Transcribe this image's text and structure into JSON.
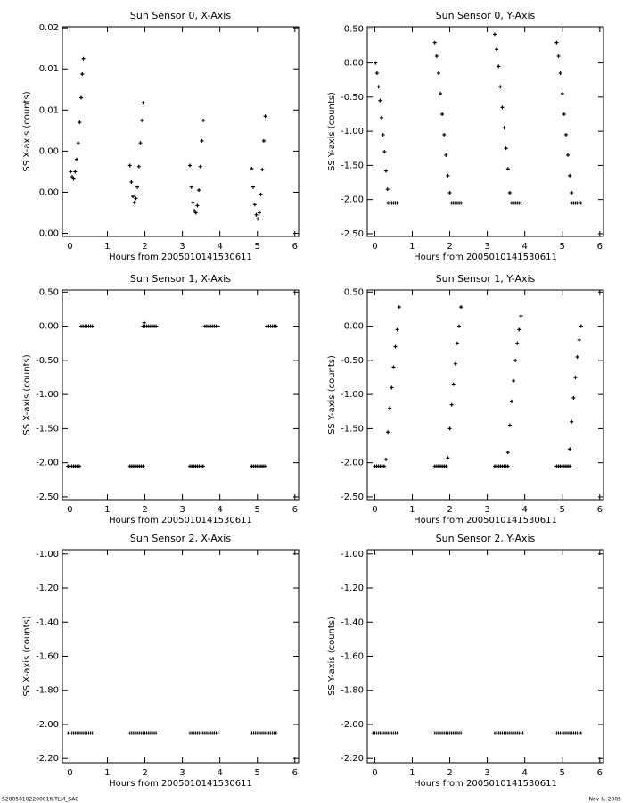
{
  "chart_data": [
    {
      "type": "scatter",
      "title": "Sun Sensor 0, X-Axis",
      "x_label": "Hours from 2005010141530611",
      "y_label": "SS X-axis (counts)",
      "color": "#000000",
      "x": [
        0.02,
        0.06,
        0.1,
        0.14,
        0.18,
        0.22,
        0.26,
        0.3,
        0.33,
        0.36,
        1.6,
        1.64,
        1.68,
        1.72,
        1.76,
        1.8,
        1.84,
        1.88,
        1.92,
        1.95,
        3.2,
        3.24,
        3.28,
        3.32,
        3.36,
        3.4,
        3.44,
        3.48,
        3.52,
        3.56,
        4.85,
        4.89,
        4.93,
        4.97,
        5.01,
        5.05,
        5.09,
        5.13,
        5.17,
        5.21
      ],
      "values": [
        0.006,
        0.0055,
        0.0053,
        0.006,
        0.0072,
        0.0088,
        0.0108,
        0.0132,
        0.0155,
        0.017,
        0.0066,
        0.005,
        0.0036,
        0.003,
        0.0034,
        0.0045,
        0.0065,
        0.0088,
        0.011,
        0.0127,
        0.0066,
        0.0045,
        0.003,
        0.0022,
        0.002,
        0.0027,
        0.0042,
        0.0065,
        0.009,
        0.011,
        0.0063,
        0.0045,
        0.0028,
        0.0018,
        0.0014,
        0.002,
        0.0038,
        0.0062,
        0.009,
        0.0114
      ],
      "xlim": [
        -0.2,
        6.1
      ],
      "ylim": [
        -0.0003,
        0.0201
      ],
      "xticks": [
        0,
        1,
        2,
        3,
        4,
        5,
        6
      ],
      "yticks": [
        {
          "value": 0,
          "label": "0.00"
        },
        {
          "value": 0.004,
          "label": "0.00"
        },
        {
          "value": 0.008,
          "label": "0.00"
        },
        {
          "value": 0.012,
          "label": "0.01"
        },
        {
          "value": 0.016,
          "label": "0.01"
        },
        {
          "value": 0.02,
          "label": "0.02"
        }
      ]
    },
    {
      "type": "scatter",
      "title": "Sun Sensor 0, Y-Axis",
      "x_label": "Hours from 2005010141530611",
      "y_label": "SS Y-axis (counts)",
      "color": "#000000",
      "x": [
        0.02,
        0.06,
        0.1,
        0.14,
        0.18,
        0.22,
        0.26,
        0.3,
        0.34,
        1.6,
        1.65,
        1.7,
        1.75,
        1.8,
        1.85,
        1.9,
        1.95,
        2,
        3.2,
        3.25,
        3.3,
        3.35,
        3.4,
        3.45,
        3.5,
        3.55,
        3.6,
        4.85,
        4.9,
        4.95,
        5,
        5.05,
        5.1,
        5.15,
        5.2,
        5.25,
        0.35,
        0.4,
        0.45,
        0.5,
        0.55,
        0.6,
        2.05,
        2.1,
        2.15,
        2.2,
        2.25,
        2.3,
        3.65,
        3.7,
        3.75,
        3.8,
        3.85,
        3.9,
        5.25,
        5.3,
        5.35,
        5.4,
        5.45,
        5.5
      ],
      "values": [
        0,
        -0.15,
        -0.35,
        -0.55,
        -0.8,
        -1.05,
        -1.3,
        -1.58,
        -1.85,
        0.3,
        0.1,
        -0.15,
        -0.45,
        -0.75,
        -1.05,
        -1.35,
        -1.65,
        -1.9,
        0.42,
        0.2,
        -0.05,
        -0.35,
        -0.65,
        -0.95,
        -1.25,
        -1.55,
        -1.9,
        0.3,
        0.1,
        -0.15,
        -0.45,
        -0.75,
        -1.05,
        -1.35,
        -1.65,
        -1.9,
        -2.05,
        -2.05,
        -2.05,
        -2.05,
        -2.05,
        -2.05,
        -2.05,
        -2.05,
        -2.05,
        -2.05,
        -2.05,
        -2.05,
        -2.05,
        -2.05,
        -2.05,
        -2.05,
        -2.05,
        -2.05,
        -2.05,
        -2.05,
        -2.05,
        -2.05,
        -2.05,
        -2.05
      ],
      "xlim": [
        -0.2,
        6.1
      ],
      "ylim": [
        -2.54,
        0.53
      ],
      "xticks": [
        0,
        1,
        2,
        3,
        4,
        5,
        6
      ],
      "yticks": [
        {
          "value": 0.5,
          "label": "0.50"
        },
        {
          "value": 0,
          "label": "0.00"
        },
        {
          "value": -0.5,
          "label": "-0.50"
        },
        {
          "value": -1,
          "label": "-1.00"
        },
        {
          "value": -1.5,
          "label": "-1.50"
        },
        {
          "value": -2,
          "label": "-2.00"
        },
        {
          "value": -2.5,
          "label": "-2.50"
        }
      ]
    },
    {
      "type": "scatter",
      "title": "Sun Sensor 1, X-Axis",
      "x_label": "Hours from 2005010141530611",
      "y_label": "SS X-axis (counts)",
      "color": "#000000",
      "x": [
        0.3,
        0.35,
        0.4,
        0.45,
        0.5,
        0.55,
        0.6,
        1.95,
        2,
        2.05,
        2.1,
        2.15,
        2.2,
        2.25,
        2.3,
        3.6,
        3.65,
        3.7,
        3.75,
        3.8,
        3.85,
        3.9,
        3.95,
        5.25,
        5.3,
        5.35,
        5.4,
        5.45,
        5.5,
        1.98,
        -0.05,
        0,
        0.05,
        0.1,
        0.15,
        0.2,
        0.25,
        1.6,
        1.65,
        1.7,
        1.75,
        1.8,
        1.85,
        1.9,
        1.95,
        3.2,
        3.25,
        3.3,
        3.35,
        3.4,
        3.45,
        3.5,
        3.55,
        4.85,
        4.9,
        4.95,
        5,
        5.05,
        5.1,
        5.15,
        5.2
      ],
      "values": [
        0,
        0,
        0,
        0,
        0,
        0,
        0,
        0,
        0,
        0,
        0,
        0,
        0,
        0,
        0,
        0,
        0,
        0,
        0,
        0,
        0,
        0,
        0,
        0,
        0,
        0,
        0,
        0,
        0,
        0.05,
        -2.05,
        -2.05,
        -2.05,
        -2.05,
        -2.05,
        -2.05,
        -2.05,
        -2.05,
        -2.05,
        -2.05,
        -2.05,
        -2.05,
        -2.05,
        -2.05,
        -2.05,
        -2.05,
        -2.05,
        -2.05,
        -2.05,
        -2.05,
        -2.05,
        -2.05,
        -2.05,
        -2.05,
        -2.05,
        -2.05,
        -2.05,
        -2.05,
        -2.05,
        -2.05,
        -2.05
      ],
      "xlim": [
        -0.2,
        6.1
      ],
      "ylim": [
        -2.54,
        0.53
      ],
      "xticks": [
        0,
        1,
        2,
        3,
        4,
        5,
        6
      ],
      "yticks": [
        {
          "value": 0.5,
          "label": "0.50"
        },
        {
          "value": 0,
          "label": "0.00"
        },
        {
          "value": -0.5,
          "label": "-0.50"
        },
        {
          "value": -1,
          "label": "-1.00"
        },
        {
          "value": -1.5,
          "label": "-1.50"
        },
        {
          "value": -2,
          "label": "-2.00"
        },
        {
          "value": -2.5,
          "label": "-2.50"
        }
      ]
    },
    {
      "type": "scatter",
      "title": "Sun Sensor 1, Y-Axis",
      "x_label": "Hours from 2005010141530611",
      "y_label": "SS Y-axis (counts)",
      "color": "#000000",
      "x": [
        0.3,
        0.35,
        0.4,
        0.45,
        0.5,
        0.55,
        0.6,
        0.65,
        1.95,
        2,
        2.05,
        2.1,
        2.15,
        2.2,
        2.25,
        2.3,
        3.55,
        3.6,
        3.65,
        3.7,
        3.75,
        3.8,
        3.85,
        3.9,
        5.2,
        5.25,
        5.3,
        5.35,
        5.4,
        5.45,
        5.5,
        0,
        0.05,
        0.1,
        0.15,
        0.2,
        0.25,
        1.6,
        1.65,
        1.7,
        1.75,
        1.8,
        1.85,
        1.9,
        3.2,
        3.25,
        3.3,
        3.35,
        3.4,
        3.45,
        3.5,
        3.55,
        4.85,
        4.9,
        4.95,
        5,
        5.05,
        5.1,
        5.15,
        5.2
      ],
      "values": [
        -1.95,
        -1.55,
        -1.2,
        -0.9,
        -0.6,
        -0.3,
        -0.05,
        0.28,
        -1.93,
        -1.5,
        -1.15,
        -0.85,
        -0.55,
        -0.25,
        0,
        0.28,
        -1.85,
        -1.45,
        -1.1,
        -0.8,
        -0.5,
        -0.25,
        -0.05,
        0.15,
        -1.8,
        -1.4,
        -1.05,
        -0.75,
        -0.45,
        -0.2,
        0,
        -2.05,
        -2.05,
        -2.05,
        -2.05,
        -2.05,
        -2.05,
        -2.05,
        -2.05,
        -2.05,
        -2.05,
        -2.05,
        -2.05,
        -2.05,
        -2.05,
        -2.05,
        -2.05,
        -2.05,
        -2.05,
        -2.05,
        -2.05,
        -2.05,
        -2.05,
        -2.05,
        -2.05,
        -2.05,
        -2.05,
        -2.05,
        -2.05,
        -2.05
      ],
      "xlim": [
        -0.2,
        6.1
      ],
      "ylim": [
        -2.54,
        0.53
      ],
      "xticks": [
        0,
        1,
        2,
        3,
        4,
        5,
        6
      ],
      "yticks": [
        {
          "value": 0.5,
          "label": "0.50"
        },
        {
          "value": 0,
          "label": "0.00"
        },
        {
          "value": -0.5,
          "label": "-0.50"
        },
        {
          "value": -1,
          "label": "-1.00"
        },
        {
          "value": -1.5,
          "label": "-1.50"
        },
        {
          "value": -2,
          "label": "-2.00"
        },
        {
          "value": -2.5,
          "label": "-2.50"
        }
      ]
    },
    {
      "type": "scatter",
      "title": "Sun Sensor 2, X-Axis",
      "x_label": "Hours from 2005010141530611",
      "y_label": "SS X-axis (counts)",
      "color": "#000000",
      "x": [
        -0.05,
        0,
        0.05,
        0.1,
        0.15,
        0.2,
        0.25,
        0.3,
        0.35,
        0.4,
        0.45,
        0.5,
        0.55,
        0.6,
        1.6,
        1.65,
        1.7,
        1.75,
        1.8,
        1.85,
        1.9,
        1.95,
        2,
        2.05,
        2.1,
        2.15,
        2.2,
        2.25,
        2.3,
        3.2,
        3.25,
        3.3,
        3.35,
        3.4,
        3.45,
        3.5,
        3.55,
        3.6,
        3.65,
        3.7,
        3.75,
        3.8,
        3.85,
        3.9,
        3.95,
        4.85,
        4.9,
        4.95,
        5,
        5.05,
        5.1,
        5.15,
        5.2,
        5.25,
        5.3,
        5.35,
        5.4,
        5.45,
        5.5
      ],
      "values": [
        -2.05,
        -2.05,
        -2.05,
        -2.05,
        -2.05,
        -2.05,
        -2.05,
        -2.05,
        -2.05,
        -2.05,
        -2.05,
        -2.05,
        -2.05,
        -2.05,
        -2.05,
        -2.05,
        -2.05,
        -2.05,
        -2.05,
        -2.05,
        -2.05,
        -2.05,
        -2.05,
        -2.05,
        -2.05,
        -2.05,
        -2.05,
        -2.05,
        -2.05,
        -2.05,
        -2.05,
        -2.05,
        -2.05,
        -2.05,
        -2.05,
        -2.05,
        -2.05,
        -2.05,
        -2.05,
        -2.05,
        -2.05,
        -2.05,
        -2.05,
        -2.05,
        -2.05,
        -2.05,
        -2.05,
        -2.05,
        -2.05,
        -2.05,
        -2.05,
        -2.05,
        -2.05,
        -2.05,
        -2.05,
        -2.05,
        -2.05,
        -2.05,
        -2.05
      ],
      "xlim": [
        -0.2,
        6.1
      ],
      "ylim": [
        -2.225,
        -0.975
      ],
      "xticks": [
        0,
        1,
        2,
        3,
        4,
        5,
        6
      ],
      "yticks": [
        {
          "value": -1,
          "label": "-1.00"
        },
        {
          "value": -1.2,
          "label": "-1.20"
        },
        {
          "value": -1.4,
          "label": "-1.40"
        },
        {
          "value": -1.6,
          "label": "-1.60"
        },
        {
          "value": -1.8,
          "label": "-1.80"
        },
        {
          "value": -2,
          "label": "-2.00"
        },
        {
          "value": -2.2,
          "label": "-2.20"
        }
      ]
    },
    {
      "type": "scatter",
      "title": "Sun Sensor 2, Y-Axis",
      "x_label": "Hours from 2005010141530611",
      "y_label": "SS Y-axis (counts)",
      "color": "#000000",
      "x": [
        -0.05,
        0,
        0.05,
        0.1,
        0.15,
        0.2,
        0.25,
        0.3,
        0.35,
        0.4,
        0.45,
        0.5,
        0.55,
        0.6,
        1.6,
        1.65,
        1.7,
        1.75,
        1.8,
        1.85,
        1.9,
        1.95,
        2,
        2.05,
        2.1,
        2.15,
        2.2,
        2.25,
        2.3,
        3.2,
        3.25,
        3.3,
        3.35,
        3.4,
        3.45,
        3.5,
        3.55,
        3.6,
        3.65,
        3.7,
        3.75,
        3.8,
        3.85,
        3.9,
        3.95,
        4.85,
        4.9,
        4.95,
        5,
        5.05,
        5.1,
        5.15,
        5.2,
        5.25,
        5.3,
        5.35,
        5.4,
        5.45,
        5.5
      ],
      "values": [
        -2.05,
        -2.05,
        -2.05,
        -2.05,
        -2.05,
        -2.05,
        -2.05,
        -2.05,
        -2.05,
        -2.05,
        -2.05,
        -2.05,
        -2.05,
        -2.05,
        -2.05,
        -2.05,
        -2.05,
        -2.05,
        -2.05,
        -2.05,
        -2.05,
        -2.05,
        -2.05,
        -2.05,
        -2.05,
        -2.05,
        -2.05,
        -2.05,
        -2.05,
        -2.05,
        -2.05,
        -2.05,
        -2.05,
        -2.05,
        -2.05,
        -2.05,
        -2.05,
        -2.05,
        -2.05,
        -2.05,
        -2.05,
        -2.05,
        -2.05,
        -2.05,
        -2.05,
        -2.05,
        -2.05,
        -2.05,
        -2.05,
        -2.05,
        -2.05,
        -2.05,
        -2.05,
        -2.05,
        -2.05,
        -2.05,
        -2.05,
        -2.05,
        -2.05
      ],
      "xlim": [
        -0.2,
        6.1
      ],
      "ylim": [
        -2.225,
        -0.975
      ],
      "xticks": [
        0,
        1,
        2,
        3,
        4,
        5,
        6
      ],
      "yticks": [
        {
          "value": -1,
          "label": "-1.00"
        },
        {
          "value": -1.2,
          "label": "-1.20"
        },
        {
          "value": -1.4,
          "label": "-1.40"
        },
        {
          "value": -1.6,
          "label": "-1.60"
        },
        {
          "value": -1.8,
          "label": "-1.80"
        },
        {
          "value": -2,
          "label": "-2.00"
        },
        {
          "value": -2.2,
          "label": "-2.20"
        }
      ]
    }
  ],
  "footer": {
    "left": "S20050102200016.TLM_SAC",
    "right": "Nov 6, 2005"
  }
}
